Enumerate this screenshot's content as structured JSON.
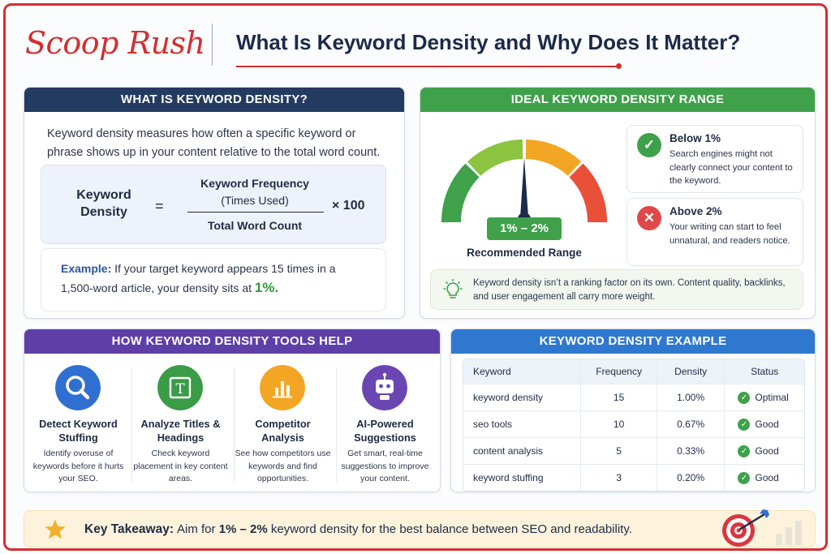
{
  "header": {
    "brand": "Scoop Rush",
    "title": "What Is Keyword Density and Why Does It Matter?"
  },
  "what_is": {
    "heading": "WHAT IS KEYWORD DENSITY?",
    "intro": "Keyword density measures how often a specific keyword or phrase shows up in your content relative to the total word count.",
    "formula": {
      "label_line1": "Keyword",
      "label_line2": "Density",
      "equals": "=",
      "numerator_bold": "Keyword Frequency",
      "numerator_sub": "(Times Used)",
      "denominator": "Total Word Count",
      "multiplier": "× 100"
    },
    "example": {
      "label": "Example:",
      "text": "If your target keyword appears 15 times in a 1,500-word article, your density sits at",
      "value": "1%."
    }
  },
  "ideal_range": {
    "heading": "IDEAL KEYWORD DENSITY RANGE",
    "gauge_colors": [
      "#3fa14a",
      "#8cc43f",
      "#f3a623",
      "#e8503a"
    ],
    "range_value": "1% – 2%",
    "range_label": "Recommended Range",
    "below": {
      "icon": "check-icon",
      "title": "Below 1%",
      "text": "Search engines might not clearly connect your content to the keyword."
    },
    "above": {
      "icon": "x-icon",
      "title": "Above 2%",
      "text": "Your writing can start to feel unnatural, and readers notice."
    },
    "tip": "Keyword density isn’t a ranking factor on its own. Content quality, backlinks, and user engagement all carry more weight."
  },
  "tools": {
    "heading": "HOW KEYWORD DENSITY TOOLS HELP",
    "items": [
      {
        "icon": "magnifier-icon",
        "color": "#2f6fd1",
        "title": "Detect Keyword Stuffing",
        "text": "Identify overuse of keywords before it hurts your SEO."
      },
      {
        "icon": "title-t-icon",
        "color": "#3a9c46",
        "title": "Analyze Titles & Headings",
        "text": "Check keyword placement in key content areas."
      },
      {
        "icon": "bar-chart-icon",
        "color": "#f3a623",
        "title": "Competitor Analysis",
        "text": "See how competitors use keywords and find opportunities."
      },
      {
        "icon": "robot-icon",
        "color": "#6b46b3",
        "title": "AI-Powered Suggestions",
        "text": "Get smart, real-time suggestions to improve your content."
      }
    ]
  },
  "example_table": {
    "heading": "KEYWORD DENSITY EXAMPLE",
    "columns": [
      "Keyword",
      "Frequency",
      "Density",
      "Status"
    ],
    "rows": [
      {
        "keyword": "keyword density",
        "frequency": "15",
        "density": "1.00%",
        "status": "Optimal"
      },
      {
        "keyword": "seo tools",
        "frequency": "10",
        "density": "0.67%",
        "status": "Good"
      },
      {
        "keyword": "content analysis",
        "frequency": "5",
        "density": "0.33%",
        "status": "Good"
      },
      {
        "keyword": "keyword stuffing",
        "frequency": "3",
        "density": "0.20%",
        "status": "Good"
      }
    ]
  },
  "takeaway": {
    "label": "Key Takeaway:",
    "pre": "Aim for",
    "highlight": "1% – 2%",
    "post": "keyword density for the best balance between SEO and readability."
  }
}
